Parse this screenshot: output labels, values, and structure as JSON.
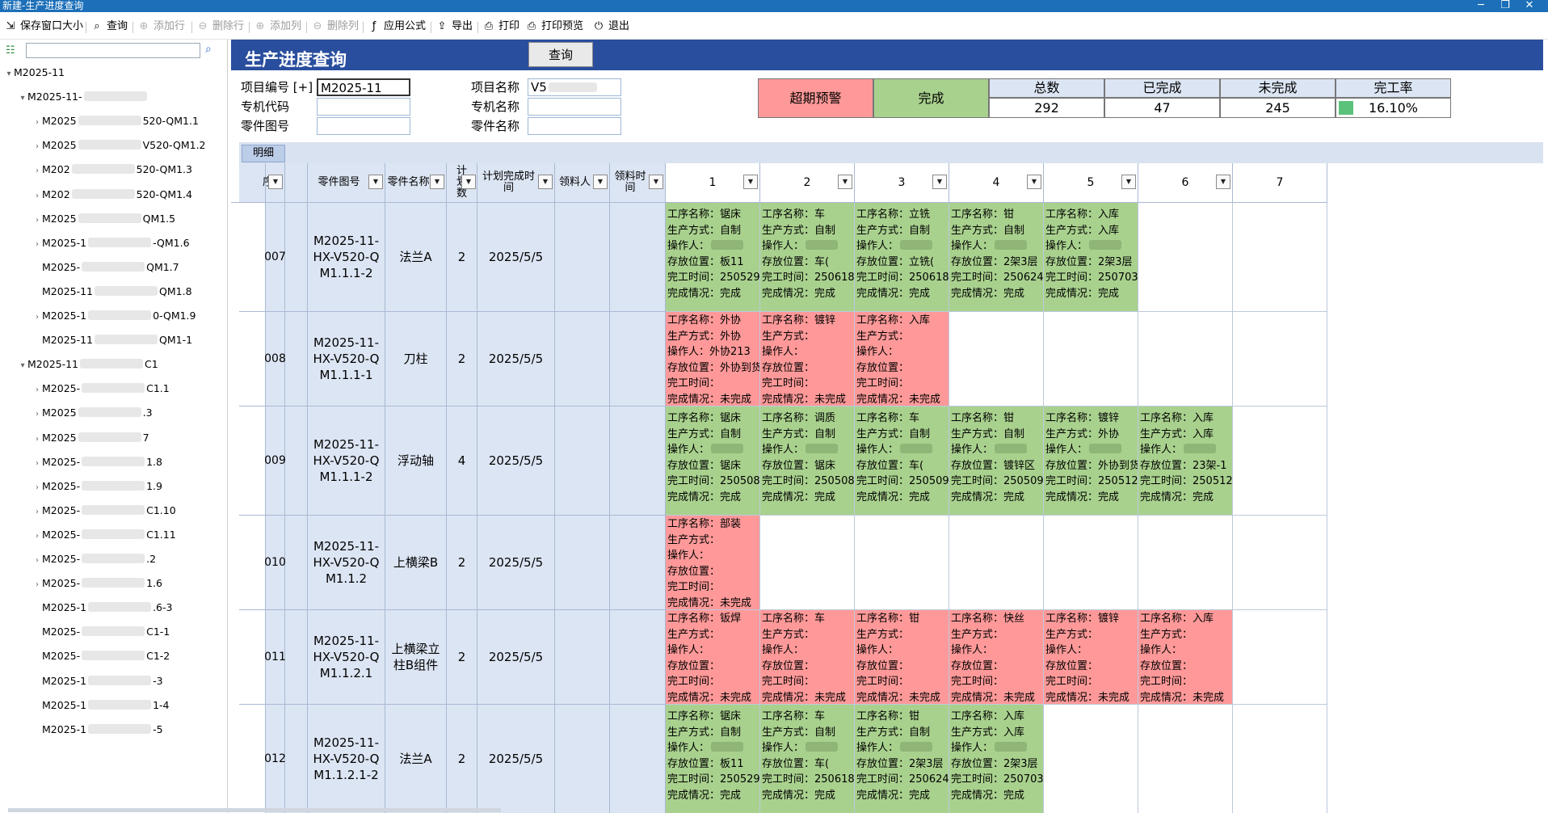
{
  "window": {
    "title": "新建-生产进度查询"
  },
  "toolbar": {
    "items": [
      {
        "label": "保存窗口大小",
        "icon": "save-window-icon",
        "enabled": true
      },
      {
        "label": "查询",
        "icon": "search-icon",
        "enabled": true
      },
      {
        "label": "添加行",
        "icon": "add-row-icon",
        "enabled": false
      },
      {
        "label": "删除行",
        "icon": "delete-row-icon",
        "enabled": false
      },
      {
        "label": "添加列",
        "icon": "add-column-icon",
        "enabled": false
      },
      {
        "label": "删除列",
        "icon": "delete-column-icon",
        "enabled": false
      },
      {
        "label": "应用公式",
        "icon": "formula-icon",
        "enabled": true
      },
      {
        "label": "导出",
        "icon": "export-icon",
        "enabled": true
      },
      {
        "label": "打印",
        "icon": "print-icon",
        "enabled": true
      },
      {
        "label": "打印预览",
        "icon": "print-preview-icon",
        "enabled": true
      },
      {
        "label": "退出",
        "icon": "exit-icon",
        "enabled": true
      }
    ]
  },
  "sidebar": {
    "tree": [
      {
        "level": 0,
        "toggle": "▾",
        "pre": "M2025-11",
        "post": "",
        "blur": false
      },
      {
        "level": 1,
        "toggle": "▾",
        "pre": "M2025-11-",
        "post": "",
        "blur": true
      },
      {
        "level": 2,
        "toggle": "›",
        "pre": "M2025",
        "post": "520-QM1.1",
        "blur": true
      },
      {
        "level": 2,
        "toggle": "›",
        "pre": "M2025",
        "post": "V520-QM1.2",
        "blur": true
      },
      {
        "level": 2,
        "toggle": "›",
        "pre": "M202",
        "post": "520-QM1.3",
        "blur": true
      },
      {
        "level": 2,
        "toggle": "›",
        "pre": "M202",
        "post": "520-QM1.4",
        "blur": true
      },
      {
        "level": 2,
        "toggle": "›",
        "pre": "M2025",
        "post": "QM1.5",
        "blur": true
      },
      {
        "level": 2,
        "toggle": "›",
        "pre": "M2025-1",
        "post": "-QM1.6",
        "blur": true
      },
      {
        "level": 2,
        "toggle": "",
        "pre": "M2025-",
        "post": "QM1.7",
        "blur": true
      },
      {
        "level": 2,
        "toggle": "",
        "pre": "M2025-11",
        "post": "QM1.8",
        "blur": true
      },
      {
        "level": 2,
        "toggle": "›",
        "pre": "M2025-1",
        "post": "0-QM1.9",
        "blur": true
      },
      {
        "level": 2,
        "toggle": "",
        "pre": "M2025-11",
        "post": "QM1-1",
        "blur": true
      },
      {
        "level": 1,
        "toggle": "▾",
        "pre": "M2025-11",
        "post": "C1",
        "blur": true
      },
      {
        "level": 2,
        "toggle": "›",
        "pre": "M2025-",
        "post": "C1.1",
        "blur": true
      },
      {
        "level": 2,
        "toggle": "›",
        "pre": "M2025",
        "post": ".3",
        "blur": true
      },
      {
        "level": 2,
        "toggle": "›",
        "pre": "M2025",
        "post": "7",
        "blur": true
      },
      {
        "level": 2,
        "toggle": "›",
        "pre": "M2025-",
        "post": "1.8",
        "blur": true
      },
      {
        "level": 2,
        "toggle": "›",
        "pre": "M2025-",
        "post": "1.9",
        "blur": true
      },
      {
        "level": 2,
        "toggle": "›",
        "pre": "M2025-",
        "post": "C1.10",
        "blur": true
      },
      {
        "level": 2,
        "toggle": "›",
        "pre": "M2025-",
        "post": "C1.11",
        "blur": true
      },
      {
        "level": 2,
        "toggle": "›",
        "pre": "M2025-",
        "post": ".2",
        "blur": true
      },
      {
        "level": 2,
        "toggle": "›",
        "pre": "M2025-",
        "post": "1.6",
        "blur": true
      },
      {
        "level": 2,
        "toggle": "",
        "pre": "M2025-1",
        "post": ".6-3",
        "blur": true
      },
      {
        "level": 2,
        "toggle": "",
        "pre": "M2025-",
        "post": "C1-1",
        "blur": true
      },
      {
        "level": 2,
        "toggle": "",
        "pre": "M2025-",
        "post": "C1-2",
        "blur": true
      },
      {
        "level": 2,
        "toggle": "",
        "pre": "M2025-1",
        "post": "-3",
        "blur": true
      },
      {
        "level": 2,
        "toggle": "",
        "pre": "M2025-1",
        "post": "1-4",
        "blur": true
      },
      {
        "level": 2,
        "toggle": "",
        "pre": "M2025-1",
        "post": "-5",
        "blur": true
      }
    ]
  },
  "page": {
    "title": "生产进度查询",
    "query_button": "查询"
  },
  "form": {
    "project_no_label": "项目编号 [+]",
    "project_no_value": "M2025-11",
    "project_name_label": "项目名称",
    "project_name_value": "V5",
    "machine_code_label": "专机代码",
    "machine_name_label": "专机名称",
    "part_drawing_label": "零件图号",
    "part_name_label": "零件名称"
  },
  "summary": {
    "overdue_label": "超期预警",
    "done_label": "完成",
    "total_label": "总数",
    "total": "292",
    "completed_label": "已完成",
    "completed": "47",
    "uncompleted_label": "未完成",
    "uncompleted": "245",
    "rate_label": "完工率",
    "rate": "16.10%"
  },
  "colors": {
    "done": "#a9d18e",
    "pending": "#ff9999",
    "overdue_header": "#ff9999",
    "header_blue": "#2a4e9e"
  },
  "tabs": {
    "detail": "明细"
  },
  "grid": {
    "columns": {
      "seq": "序",
      "part_drawing": "零件图号",
      "part_name": "零件名称",
      "plan_qty": "计划数",
      "plan_finish": "计划完成时间",
      "receiver": "领料人",
      "receive_time": "领料时间"
    },
    "process_columns": [
      "1",
      "2",
      "3",
      "4",
      "5",
      "6",
      "7"
    ],
    "field_labels": {
      "name": "工序名称：",
      "method": "生产方式：",
      "operator": "操作人：",
      "location": "存放位置：",
      "finish_time": "完工时间：",
      "status": "完成情况："
    },
    "rows": [
      {
        "seq": "007",
        "drawing": "M2025-11-HX-V520-QM1.1.1-2",
        "part_name": "法兰A",
        "qty": "2",
        "plan_date": "2025/5/5",
        "receiver": "",
        "receive_time": "",
        "processes": [
          {
            "status": "done",
            "name": "锯床",
            "method": "自制",
            "operator": "",
            "location": "板11",
            "finish_time": "250529",
            "result": "完成"
          },
          {
            "status": "done",
            "name": "车",
            "method": "自制",
            "operator": "",
            "location": "车(",
            "finish_time": "250618",
            "result": "完成"
          },
          {
            "status": "done",
            "name": "立铣",
            "method": "自制",
            "operator": "",
            "location": "立铣(",
            "finish_time": "250618",
            "result": "完成"
          },
          {
            "status": "done",
            "name": "钳",
            "method": "自制",
            "operator": "",
            "location": "2架3层",
            "finish_time": "250624",
            "result": "完成"
          },
          {
            "status": "done",
            "name": "入库",
            "method": "入库",
            "operator": "",
            "location": "2架3层",
            "finish_time": "250703",
            "result": "完成"
          },
          null,
          null
        ]
      },
      {
        "seq": "008",
        "drawing": "M2025-11-HX-V520-QM1.1.1-1",
        "part_name": "刀柱",
        "qty": "2",
        "plan_date": "2025/5/5",
        "receiver": "",
        "receive_time": "",
        "processes": [
          {
            "status": "pending",
            "name": "外协",
            "method": "外协",
            "operator": "外协213",
            "location": "外协到货",
            "finish_time": "",
            "result": "未完成"
          },
          {
            "status": "pending",
            "name": "镀锌",
            "method": "",
            "operator": "",
            "location": "",
            "finish_time": "",
            "result": "未完成"
          },
          {
            "status": "pending",
            "name": "入库",
            "method": "",
            "operator": "",
            "location": "",
            "finish_time": "",
            "result": "未完成"
          },
          null,
          null,
          null,
          null
        ]
      },
      {
        "seq": "009",
        "drawing": "M2025-11-HX-V520-QM1.1.1-2",
        "part_name": "浮动轴",
        "qty": "4",
        "plan_date": "2025/5/5",
        "receiver": "",
        "receive_time": "",
        "processes": [
          {
            "status": "done",
            "name": "锯床",
            "method": "自制",
            "operator": "",
            "location": "锯床",
            "finish_time": "250508",
            "result": "完成"
          },
          {
            "status": "done",
            "name": "调质",
            "method": "自制",
            "operator": "",
            "location": "锯床",
            "finish_time": "250508",
            "result": "完成"
          },
          {
            "status": "done",
            "name": "车",
            "method": "自制",
            "operator": "",
            "location": "车(",
            "finish_time": "250509",
            "result": "完成"
          },
          {
            "status": "done",
            "name": "钳",
            "method": "自制",
            "operator": "",
            "location": "镀锌区",
            "finish_time": "250509",
            "result": "完成"
          },
          {
            "status": "done",
            "name": "镀锌",
            "method": "外协",
            "operator": "",
            "location": "外协到货",
            "finish_time": "250512",
            "result": "完成"
          },
          {
            "status": "done",
            "name": "入库",
            "method": "入库",
            "operator": "",
            "location": "23架-1",
            "finish_time": "250512",
            "result": "完成"
          },
          null
        ]
      },
      {
        "seq": "010",
        "drawing": "M2025-11-HX-V520-QM1.1.2",
        "part_name": "上横梁B",
        "qty": "2",
        "plan_date": "2025/5/5",
        "receiver": "",
        "receive_time": "",
        "processes": [
          {
            "status": "pending",
            "name": "部装",
            "method": "",
            "operator": "",
            "location": "",
            "finish_time": "",
            "result": "未完成"
          },
          null,
          null,
          null,
          null,
          null,
          null
        ]
      },
      {
        "seq": "011",
        "drawing": "M2025-11-HX-V520-QM1.1.2.1",
        "part_name": "上横梁立柱B组件",
        "qty": "2",
        "plan_date": "2025/5/5",
        "receiver": "",
        "receive_time": "",
        "processes": [
          {
            "status": "pending",
            "name": "钣焊",
            "method": "",
            "operator": "",
            "location": "",
            "finish_time": "",
            "result": "未完成"
          },
          {
            "status": "pending",
            "name": "车",
            "method": "",
            "operator": "",
            "location": "",
            "finish_time": "",
            "result": "未完成"
          },
          {
            "status": "pending",
            "name": "钳",
            "method": "",
            "operator": "",
            "location": "",
            "finish_time": "",
            "result": "未完成"
          },
          {
            "status": "pending",
            "name": "快丝",
            "method": "",
            "operator": "",
            "location": "",
            "finish_time": "",
            "result": "未完成"
          },
          {
            "status": "pending",
            "name": "镀锌",
            "method": "",
            "operator": "",
            "location": "",
            "finish_time": "",
            "result": "未完成"
          },
          {
            "status": "pending",
            "name": "入库",
            "method": "",
            "operator": "",
            "location": "",
            "finish_time": "",
            "result": "未完成"
          },
          null
        ]
      },
      {
        "seq": "012",
        "drawing": "M2025-11-HX-V520-QM1.1.2.1-2",
        "part_name": "法兰A",
        "qty": "2",
        "plan_date": "2025/5/5",
        "receiver": "",
        "receive_time": "",
        "processes": [
          {
            "status": "done",
            "name": "锯床",
            "method": "自制",
            "operator": "",
            "location": "板11",
            "finish_time": "250529",
            "result": "完成"
          },
          {
            "status": "done",
            "name": "车",
            "method": "自制",
            "operator": "",
            "location": "车(",
            "finish_time": "250618",
            "result": "完成"
          },
          {
            "status": "done",
            "name": "钳",
            "method": "自制",
            "operator": "",
            "location": "2架3层",
            "finish_time": "250624",
            "result": "完成"
          },
          {
            "status": "done",
            "name": "入库",
            "method": "入库",
            "operator": "",
            "location": "2架3层",
            "finish_time": "250703",
            "result": "完成"
          },
          null,
          null,
          null
        ]
      }
    ]
  }
}
